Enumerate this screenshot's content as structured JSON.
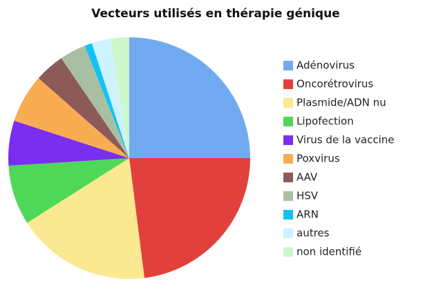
{
  "chart_data": {
    "type": "pie",
    "title": "Vecteurs utilisés en thérapie génique",
    "categories": [
      "Adénovirus",
      "Oncorétrovirus",
      "Plasmide/ADN nu",
      "Lipofection",
      "Virus de la vaccine",
      "Poxvirus",
      "AAV",
      "HSV",
      "ARN",
      "autres",
      "non identifié"
    ],
    "values": [
      25,
      23,
      18,
      8,
      6,
      6.5,
      4,
      3.5,
      1,
      2.5,
      2.5
    ],
    "colors": [
      "#72aaf2",
      "#e2403c",
      "#fbe991",
      "#4fd858",
      "#7a2ff0",
      "#f8ad52",
      "#8d5a5a",
      "#a9bfa2",
      "#12c2f2",
      "#ccf3ff",
      "#ccf8cc"
    ],
    "legend": "right"
  }
}
